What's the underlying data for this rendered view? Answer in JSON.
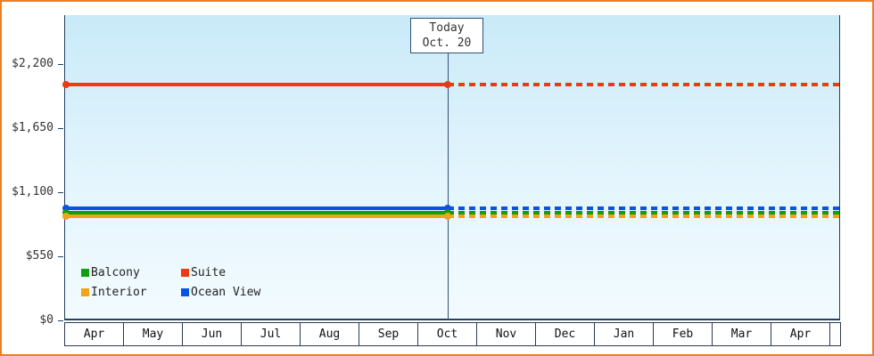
{
  "chart_data": {
    "type": "line",
    "title": "",
    "x_categories": [
      "Apr",
      "May",
      "Jun",
      "Jul",
      "Aug",
      "Sep",
      "Oct",
      "Nov",
      "Dec",
      "Jan",
      "Feb",
      "Mar",
      "Apr"
    ],
    "y_ticks": [
      {
        "label": "$0",
        "value": 0
      },
      {
        "label": "$550",
        "value": 550
      },
      {
        "label": "$1,100",
        "value": 1100
      },
      {
        "label": "$1,650",
        "value": 1650
      },
      {
        "label": "$2,200",
        "value": 2200
      }
    ],
    "ylim": [
      0,
      2620
    ],
    "xlabel": "",
    "ylabel": "",
    "grid": false,
    "legend_position": "bottom-left-inside",
    "today": {
      "label_line1": "Today",
      "label_line2": "Oct. 20",
      "x_category": "Oct",
      "x_index": 6
    },
    "line_style": {
      "before_today": "solid",
      "after_today": "dotted"
    },
    "series": [
      {
        "name": "Suite",
        "color": "#f03911",
        "value": 2025
      },
      {
        "name": "Ocean View",
        "color": "#0a53e0",
        "value": 960
      },
      {
        "name": "Balcony",
        "color": "#0fa00f",
        "value": 925
      },
      {
        "name": "Interior",
        "color": "#f0a418",
        "value": 890
      }
    ],
    "legend": [
      {
        "label": "Balcony",
        "color": "#0fa00f"
      },
      {
        "label": "Suite",
        "color": "#f03911"
      },
      {
        "label": "Interior",
        "color": "#f0a418"
      },
      {
        "label": "Ocean View",
        "color": "#0a53e0"
      }
    ]
  },
  "colors": {
    "outer_border": "#ee7d23",
    "axis": "#24405e",
    "plot_gradient_top": "#c9eaf8",
    "plot_gradient_bottom": "#f2fbff",
    "text": "#333333"
  }
}
